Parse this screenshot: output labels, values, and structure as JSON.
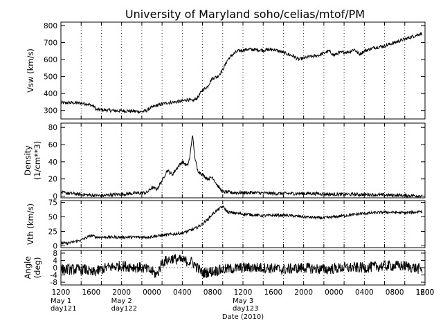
{
  "chart_data": {
    "type": "line",
    "title": "University of Maryland  soho/celias/mtof/PM",
    "xlabel": "Date (2010)",
    "x_unit": "hours since 2010-05-01 12:00",
    "xlim": [
      0,
      72
    ],
    "x_tick_labels": [
      "1200",
      "1600",
      "2000",
      "0000",
      "0400",
      "0800",
      "1200",
      "1600",
      "2000",
      "0000",
      "0400",
      "0800",
      "1200",
      "1600"
    ],
    "date_labels": [
      {
        "hours": 0,
        "line1": "May 1",
        "line2": "day121"
      },
      {
        "hours": 12,
        "line1": "May 2",
        "line2": "day122"
      },
      {
        "hours": 36,
        "line1": "May 3",
        "line2": "day123"
      }
    ],
    "grid": "vertical dotted every 4 hours",
    "panels": [
      {
        "name": "Vsw",
        "ylabel": [
          "Vsw (km/s)"
        ],
        "ylim": [
          250,
          820
        ],
        "yticks": [
          300,
          400,
          500,
          600,
          700,
          800
        ],
        "points": [
          [
            0,
            345
          ],
          [
            3,
            345
          ],
          [
            5,
            340
          ],
          [
            6.5,
            325
          ],
          [
            7,
            305
          ],
          [
            9,
            302
          ],
          [
            11,
            298
          ],
          [
            13,
            298
          ],
          [
            16,
            293
          ],
          [
            17,
            300
          ],
          [
            17.5,
            312
          ],
          [
            19,
            330
          ],
          [
            21,
            345
          ],
          [
            24,
            355
          ],
          [
            25,
            365
          ],
          [
            26,
            355
          ],
          [
            27,
            375
          ],
          [
            28,
            420
          ],
          [
            29,
            440
          ],
          [
            29.5,
            470
          ],
          [
            30,
            490
          ],
          [
            31,
            500
          ],
          [
            32,
            540
          ],
          [
            33,
            600
          ],
          [
            34,
            630
          ],
          [
            35,
            650
          ],
          [
            37,
            660
          ],
          [
            40,
            655
          ],
          [
            42,
            660
          ],
          [
            44,
            640
          ],
          [
            46,
            620
          ],
          [
            47,
            600
          ],
          [
            49,
            615
          ],
          [
            51,
            625
          ],
          [
            53,
            650
          ],
          [
            54,
            625
          ],
          [
            55,
            640
          ],
          [
            57,
            645
          ],
          [
            58,
            660
          ],
          [
            59,
            630
          ],
          [
            60,
            650
          ],
          [
            62,
            670
          ],
          [
            64,
            680
          ],
          [
            66,
            700
          ],
          [
            68,
            720
          ],
          [
            70,
            740
          ],
          [
            71.5,
            755
          ]
        ],
        "noise": 10
      },
      {
        "name": "Density",
        "ylabel": [
          "Density",
          "(1/cm**3)"
        ],
        "ylim": [
          -2,
          85
        ],
        "yticks": [
          0,
          20,
          40,
          60,
          80
        ],
        "points": [
          [
            0,
            4
          ],
          [
            3,
            2.5
          ],
          [
            6,
            1
          ],
          [
            8,
            0.5
          ],
          [
            11,
            2
          ],
          [
            14,
            3
          ],
          [
            17,
            4
          ],
          [
            18,
            10
          ],
          [
            19,
            8
          ],
          [
            20,
            18
          ],
          [
            21,
            30
          ],
          [
            22,
            25
          ],
          [
            23,
            33
          ],
          [
            24,
            40
          ],
          [
            25,
            35
          ],
          [
            25.5,
            45
          ],
          [
            26,
            72
          ],
          [
            26.5,
            45
          ],
          [
            27,
            30
          ],
          [
            28,
            25
          ],
          [
            29,
            20
          ],
          [
            30,
            22
          ],
          [
            31,
            12
          ],
          [
            32,
            5
          ],
          [
            34,
            4
          ],
          [
            38,
            4
          ],
          [
            42,
            3
          ],
          [
            46,
            3
          ],
          [
            50,
            3
          ],
          [
            54,
            2
          ],
          [
            58,
            2
          ],
          [
            62,
            1.5
          ],
          [
            66,
            1
          ],
          [
            70,
            0.5
          ],
          [
            72,
            0.5
          ]
        ],
        "noise": 2
      },
      {
        "name": "Vth",
        "ylabel": [
          "Vth  (km/s)"
        ],
        "ylim": [
          -3,
          78
        ],
        "yticks": [
          0,
          25,
          50,
          75
        ],
        "points": [
          [
            0,
            5
          ],
          [
            1,
            4
          ],
          [
            3,
            8
          ],
          [
            4,
            10
          ],
          [
            5,
            14
          ],
          [
            6,
            18
          ],
          [
            7,
            15
          ],
          [
            10,
            15
          ],
          [
            14,
            15
          ],
          [
            17,
            15
          ],
          [
            20,
            18
          ],
          [
            22,
            20
          ],
          [
            24,
            22
          ],
          [
            26,
            28
          ],
          [
            27,
            32
          ],
          [
            28,
            38
          ],
          [
            29,
            45
          ],
          [
            30,
            55
          ],
          [
            31,
            62
          ],
          [
            32,
            68
          ],
          [
            33,
            58
          ],
          [
            36,
            55
          ],
          [
            40,
            52
          ],
          [
            44,
            53
          ],
          [
            48,
            50
          ],
          [
            52,
            48
          ],
          [
            56,
            52
          ],
          [
            60,
            56
          ],
          [
            64,
            58
          ],
          [
            68,
            57
          ],
          [
            70,
            58
          ],
          [
            71.5,
            60
          ]
        ],
        "noise": 2.5
      },
      {
        "name": "Angle",
        "ylabel": [
          "Angle",
          "(deg)"
        ],
        "ylim": [
          -9.5,
          9.5
        ],
        "yticks": [
          -8,
          -4,
          0,
          4,
          8
        ],
        "reference_line": 0,
        "points": [
          [
            0,
            -1
          ],
          [
            5,
            -1
          ],
          [
            6,
            -3
          ],
          [
            7,
            -2
          ],
          [
            9,
            0
          ],
          [
            12,
            1
          ],
          [
            16,
            0
          ],
          [
            18,
            -2
          ],
          [
            19,
            -4
          ],
          [
            20,
            3
          ],
          [
            22,
            5
          ],
          [
            24,
            4
          ],
          [
            26,
            3
          ],
          [
            28,
            -3
          ],
          [
            30,
            -2
          ],
          [
            32,
            -1
          ],
          [
            36,
            0
          ],
          [
            40,
            0
          ],
          [
            44,
            -1
          ],
          [
            48,
            0
          ],
          [
            52,
            -1
          ],
          [
            56,
            0
          ],
          [
            60,
            0
          ],
          [
            64,
            1
          ],
          [
            68,
            1
          ],
          [
            71.5,
            -1
          ]
        ],
        "noise": 3
      }
    ]
  }
}
